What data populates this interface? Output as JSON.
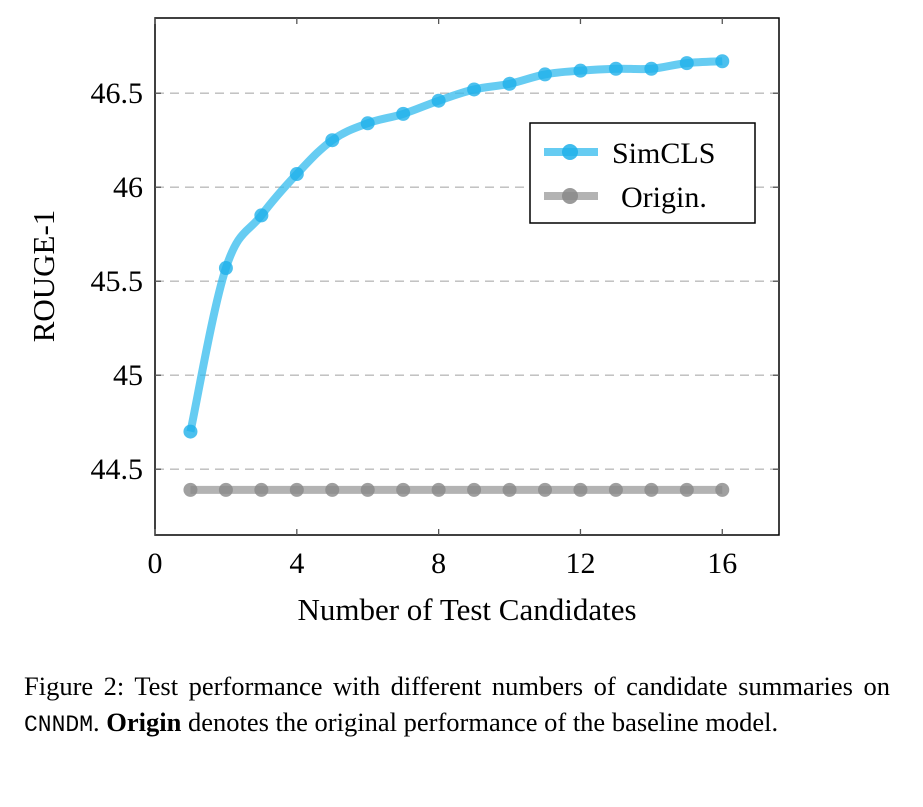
{
  "chart_data": {
    "type": "line",
    "xlabel": "Number of Test Candidates",
    "ylabel": "ROUGE-1",
    "xlim": [
      0,
      17.6
    ],
    "ylim": [
      44.15,
      46.9
    ],
    "xticks": [
      0,
      4,
      8,
      12,
      16
    ],
    "yticks": [
      44.5,
      45,
      45.5,
      46,
      46.5
    ],
    "ytick_labels": [
      "44.5",
      "45",
      "45.5",
      "46",
      "46.5"
    ],
    "grid": "horizontal dashed",
    "legend_position": "top-right",
    "x": [
      1,
      2,
      3,
      4,
      5,
      6,
      7,
      8,
      9,
      10,
      11,
      12,
      13,
      14,
      15,
      16
    ],
    "series": [
      {
        "name": "SimCLS",
        "color": "#33bbee",
        "values": [
          44.7,
          45.57,
          45.85,
          46.07,
          46.25,
          46.34,
          46.39,
          46.46,
          46.52,
          46.55,
          46.6,
          46.62,
          46.63,
          46.63,
          46.66,
          46.67
        ]
      },
      {
        "name": "Origin.",
        "color": "#999999",
        "values": [
          44.39,
          44.39,
          44.39,
          44.39,
          44.39,
          44.39,
          44.39,
          44.39,
          44.39,
          44.39,
          44.39,
          44.39,
          44.39,
          44.39,
          44.39,
          44.39
        ]
      }
    ]
  },
  "caption": {
    "label": "Figure 2:",
    "text1": "Test performance with different numbers of candidate summaries on",
    "dataset": "CNNDM",
    "text2": ".",
    "bold": "Origin",
    "text3": "denotes the original performance of the baseline model."
  }
}
